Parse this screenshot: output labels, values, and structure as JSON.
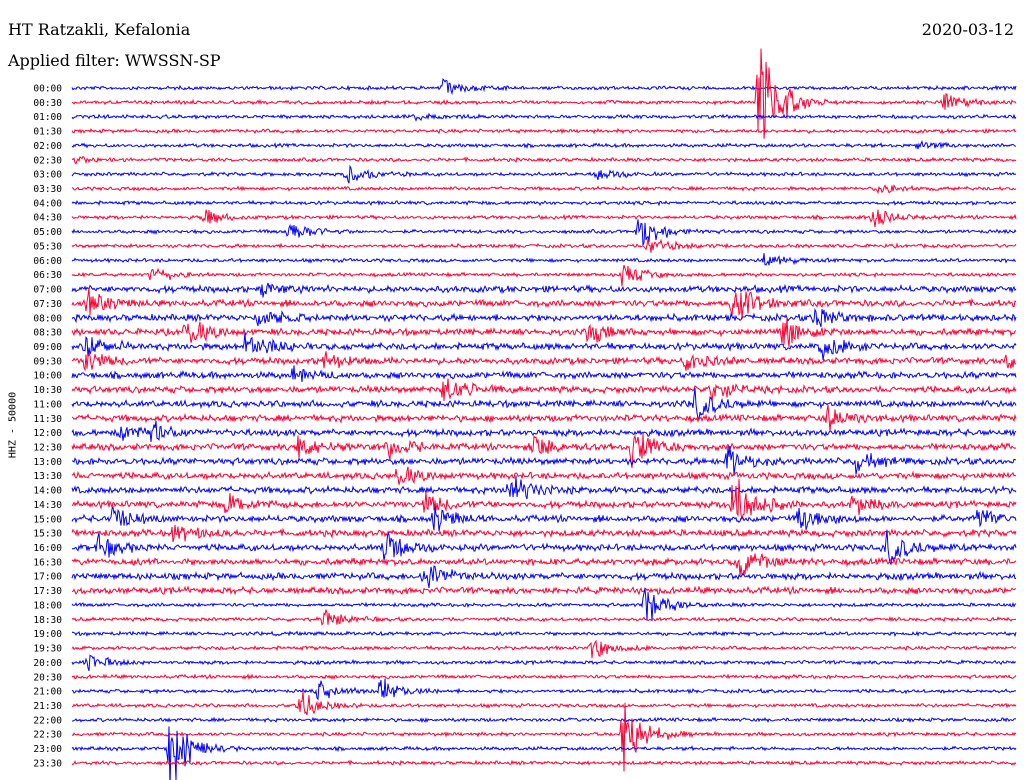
{
  "header": {
    "station": "HT Ratzakli, Kefalonia",
    "filter": "Applied filter: WWSSN-SP",
    "date": "2020-03-12"
  },
  "chart_data": {
    "type": "line",
    "title": "HT Ratzakli, Kefalonia",
    "subtitle": "Applied filter: WWSSN-SP",
    "date": "2020-03-12",
    "ylabel": "HHZ - 50000",
    "row_labels": [
      "00:00",
      "00:30",
      "01:00",
      "01:30",
      "02:00",
      "02:30",
      "03:00",
      "03:30",
      "04:00",
      "04:30",
      "05:00",
      "05:30",
      "06:00",
      "06:30",
      "07:00",
      "07:30",
      "08:00",
      "08:30",
      "09:00",
      "09:30",
      "10:00",
      "10:30",
      "11:00",
      "11:30",
      "12:00",
      "12:30",
      "13:00",
      "13:30",
      "14:00",
      "14:30",
      "15:00",
      "15:30",
      "16:00",
      "16:30",
      "17:00",
      "17:30",
      "18:00",
      "18:30",
      "19:00",
      "19:30",
      "20:00",
      "20:30",
      "21:00",
      "21:30",
      "22:00",
      "22:30",
      "23:00",
      "23:30"
    ],
    "colors": [
      "#0000ff",
      "#ff0033"
    ],
    "x_range_minutes": [
      0,
      30
    ],
    "events": [
      {
        "row": 0,
        "minute": 11.8,
        "amp": 10
      },
      {
        "row": 1,
        "minute": 21.8,
        "amp": 90
      },
      {
        "row": 1,
        "minute": 27.7,
        "amp": 14
      },
      {
        "row": 2,
        "minute": 10.9,
        "amp": 5
      },
      {
        "row": 4,
        "minute": 26.9,
        "amp": 5
      },
      {
        "row": 5,
        "minute": 0.1,
        "amp": 4
      },
      {
        "row": 6,
        "minute": 8.7,
        "amp": 14
      },
      {
        "row": 6,
        "minute": 16.7,
        "amp": 8
      },
      {
        "row": 7,
        "minute": 25.6,
        "amp": 7
      },
      {
        "row": 9,
        "minute": 4.2,
        "amp": 10
      },
      {
        "row": 9,
        "minute": 25.4,
        "amp": 12
      },
      {
        "row": 10,
        "minute": 6.9,
        "amp": 14
      },
      {
        "row": 10,
        "minute": 18.0,
        "amp": 24
      },
      {
        "row": 11,
        "minute": 18.3,
        "amp": 12
      },
      {
        "row": 12,
        "minute": 22.0,
        "amp": 10
      },
      {
        "row": 13,
        "minute": 2.5,
        "amp": 10
      },
      {
        "row": 13,
        "minute": 17.5,
        "amp": 14
      },
      {
        "row": 14,
        "minute": 6.0,
        "amp": 8
      },
      {
        "row": 15,
        "minute": 0.5,
        "amp": 14
      },
      {
        "row": 15,
        "minute": 21.0,
        "amp": 28
      },
      {
        "row": 16,
        "minute": 5.9,
        "amp": 14
      },
      {
        "row": 16,
        "minute": 23.6,
        "amp": 14
      },
      {
        "row": 17,
        "minute": 3.6,
        "amp": 20
      },
      {
        "row": 17,
        "minute": 16.4,
        "amp": 12
      },
      {
        "row": 17,
        "minute": 22.6,
        "amp": 20
      },
      {
        "row": 18,
        "minute": 0.4,
        "amp": 16
      },
      {
        "row": 18,
        "minute": 5.5,
        "amp": 22
      },
      {
        "row": 18,
        "minute": 23.8,
        "amp": 16
      },
      {
        "row": 19,
        "minute": 0.4,
        "amp": 14
      },
      {
        "row": 19,
        "minute": 8.0,
        "amp": 12
      },
      {
        "row": 19,
        "minute": 19.5,
        "amp": 14
      },
      {
        "row": 19,
        "minute": 29.7,
        "amp": 14
      },
      {
        "row": 20,
        "minute": 7.0,
        "amp": 8
      },
      {
        "row": 21,
        "minute": 11.8,
        "amp": 18
      },
      {
        "row": 21,
        "minute": 20.3,
        "amp": 14
      },
      {
        "row": 22,
        "minute": 19.8,
        "amp": 20
      },
      {
        "row": 23,
        "minute": 24.0,
        "amp": 14
      },
      {
        "row": 24,
        "minute": 1.5,
        "amp": 12
      },
      {
        "row": 24,
        "minute": 2.5,
        "amp": 12
      },
      {
        "row": 25,
        "minute": 7.2,
        "amp": 16
      },
      {
        "row": 25,
        "minute": 10.0,
        "amp": 14
      },
      {
        "row": 25,
        "minute": 14.7,
        "amp": 14
      },
      {
        "row": 25,
        "minute": 17.8,
        "amp": 28
      },
      {
        "row": 26,
        "minute": 20.8,
        "amp": 18
      },
      {
        "row": 26,
        "minute": 24.9,
        "amp": 12
      },
      {
        "row": 27,
        "minute": 10.3,
        "amp": 14
      },
      {
        "row": 28,
        "minute": 13.9,
        "amp": 20
      },
      {
        "row": 29,
        "minute": 4.9,
        "amp": 14
      },
      {
        "row": 29,
        "minute": 11.2,
        "amp": 14
      },
      {
        "row": 29,
        "minute": 21.0,
        "amp": 40
      },
      {
        "row": 29,
        "minute": 24.8,
        "amp": 12
      },
      {
        "row": 30,
        "minute": 1.3,
        "amp": 16
      },
      {
        "row": 30,
        "minute": 11.5,
        "amp": 14
      },
      {
        "row": 30,
        "minute": 23.1,
        "amp": 20
      },
      {
        "row": 30,
        "minute": 28.8,
        "amp": 14
      },
      {
        "row": 31,
        "minute": 3.2,
        "amp": 12
      },
      {
        "row": 32,
        "minute": 0.8,
        "amp": 14
      },
      {
        "row": 32,
        "minute": 9.9,
        "amp": 22
      },
      {
        "row": 32,
        "minute": 25.9,
        "amp": 22
      },
      {
        "row": 33,
        "minute": 21.2,
        "amp": 24
      },
      {
        "row": 34,
        "minute": 11.2,
        "amp": 22
      },
      {
        "row": 36,
        "minute": 18.2,
        "amp": 22
      },
      {
        "row": 37,
        "minute": 8.0,
        "amp": 12
      },
      {
        "row": 39,
        "minute": 16.5,
        "amp": 14
      },
      {
        "row": 40,
        "minute": 0.5,
        "amp": 10
      },
      {
        "row": 42,
        "minute": 7.8,
        "amp": 14
      },
      {
        "row": 42,
        "minute": 9.8,
        "amp": 16
      },
      {
        "row": 43,
        "minute": 7.2,
        "amp": 18
      },
      {
        "row": 45,
        "minute": 17.5,
        "amp": 50
      },
      {
        "row": 46,
        "minute": 3.1,
        "amp": 50
      }
    ]
  }
}
